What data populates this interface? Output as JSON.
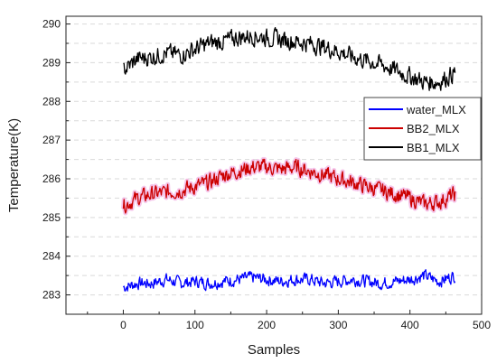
{
  "chart_data": {
    "type": "line",
    "title": "",
    "xlabel": "Samples",
    "ylabel": "Temperature(K)",
    "xlim": [
      -80,
      500
    ],
    "ylim": [
      282.5,
      290.2
    ],
    "xticks": [
      0,
      100,
      200,
      300,
      400,
      500
    ],
    "yticks": [
      283,
      284,
      285,
      286,
      287,
      288,
      289,
      290
    ],
    "xtick_labels": [
      "0",
      "100",
      "200",
      "300",
      "400",
      "500"
    ],
    "ytick_labels": [
      "283",
      "284",
      "285",
      "286",
      "287",
      "288",
      "289",
      "290"
    ],
    "grid": "dashed horizontal minor gridlines",
    "legend_position": "right",
    "series": [
      {
        "name": "water_MLX",
        "color": "#0000ff",
        "x": [
          0,
          20,
          40,
          60,
          80,
          100,
          120,
          140,
          160,
          180,
          200,
          220,
          240,
          260,
          280,
          300,
          320,
          340,
          360,
          380,
          400,
          420,
          440,
          463
        ],
        "y": [
          283.2,
          283.3,
          283.3,
          283.4,
          283.3,
          283.35,
          283.3,
          283.35,
          283.4,
          283.45,
          283.4,
          283.35,
          283.4,
          283.4,
          283.3,
          283.35,
          283.4,
          283.35,
          283.3,
          283.35,
          283.4,
          283.5,
          283.35,
          283.5
        ]
      },
      {
        "name": "BB2_MLX",
        "color": "#cc0000",
        "x": [
          0,
          20,
          40,
          60,
          80,
          100,
          120,
          140,
          160,
          180,
          200,
          220,
          240,
          260,
          280,
          300,
          320,
          340,
          360,
          380,
          400,
          420,
          440,
          463
        ],
        "y": [
          285.3,
          285.5,
          285.6,
          285.65,
          285.7,
          285.8,
          285.9,
          286.1,
          286.2,
          286.3,
          286.3,
          286.25,
          286.3,
          286.2,
          286.1,
          286.0,
          285.9,
          285.8,
          285.7,
          285.6,
          285.5,
          285.35,
          285.4,
          285.6
        ]
      },
      {
        "name": "BB1_MLX",
        "color": "#000000",
        "x": [
          0,
          20,
          40,
          60,
          80,
          100,
          120,
          140,
          160,
          180,
          200,
          220,
          240,
          260,
          280,
          300,
          320,
          340,
          360,
          380,
          400,
          420,
          440,
          463
        ],
        "y": [
          288.8,
          289.1,
          289.15,
          289.25,
          289.2,
          289.35,
          289.5,
          289.55,
          289.65,
          289.7,
          289.65,
          289.6,
          289.55,
          289.5,
          289.4,
          289.3,
          289.15,
          289.05,
          288.95,
          288.8,
          288.65,
          288.5,
          288.5,
          288.75
        ]
      }
    ]
  }
}
